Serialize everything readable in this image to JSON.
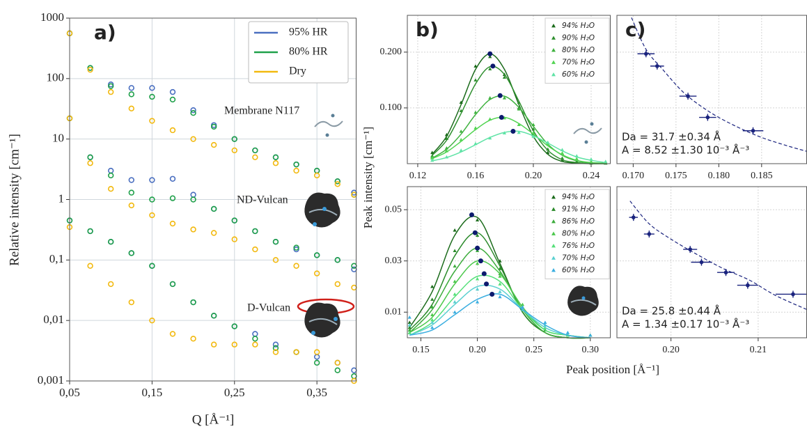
{
  "chart_data": [
    {
      "type": "scatter",
      "panel": "a)",
      "xlabel": "Q [Å⁻¹]",
      "ylabel": "Relative intensity [cm⁻¹]",
      "xlim": [
        0.05,
        0.398
      ],
      "xticks": [
        {
          "value": 0.05,
          "label": "0,05"
        },
        {
          "value": 0.15,
          "label": "0,15"
        },
        {
          "value": 0.25,
          "label": "0,25"
        },
        {
          "value": 0.35,
          "label": "0,35"
        }
      ],
      "ylim": [
        0.001,
        1000
      ],
      "ylog": true,
      "yticks": [
        {
          "value": 0.001,
          "label": "0,001"
        },
        {
          "value": 0.01,
          "label": "0,01"
        },
        {
          "value": 0.1,
          "label": "0,1"
        },
        1,
        10,
        100,
        1000
      ],
      "grid": true,
      "legend": "upper right",
      "series": [
        {
          "name": "95% HR",
          "color": "#4a6fc0",
          "marker": "circle"
        },
        {
          "name": "80% HR",
          "color": "#1fa04a",
          "marker": "circle"
        },
        {
          "name": "Dry",
          "color": "#f2b90f",
          "marker": "circle"
        }
      ],
      "x": [
        0.05,
        0.075,
        0.1,
        0.125,
        0.15,
        0.175,
        0.2,
        0.225,
        0.25,
        0.275,
        0.3,
        0.325,
        0.35,
        0.375,
        0.395
      ],
      "samples": [
        {
          "label": "Membrane N117",
          "values": [
            [
              560,
              150,
              80,
              70,
              70,
              60,
              30,
              17,
              10,
              6.5,
              5,
              3.8,
              3,
              2,
              1.3
            ],
            [
              560,
              150,
              75,
              55,
              50,
              45,
              27,
              16,
              10,
              6.5,
              5,
              3.8,
              3,
              2,
              1.2
            ],
            [
              560,
              140,
              60,
              32,
              20,
              14,
              10,
              8,
              6.5,
              5,
              4,
              3,
              2.5,
              1.8,
              1.2
            ]
          ]
        },
        {
          "label": "ND-Vulcan",
          "values": [
            [
              22,
              5,
              3,
              2.1,
              2.1,
              2.2,
              1.2,
              0.7,
              0.45,
              0.3,
              0.2,
              0.15,
              0.12,
              0.1,
              0.07
            ],
            [
              22,
              5,
              2.5,
              1.3,
              1,
              1.05,
              1,
              0.7,
              0.45,
              0.3,
              0.2,
              0.16,
              0.12,
              0.1,
              0.08
            ],
            [
              22,
              4,
              1.5,
              0.8,
              0.55,
              0.4,
              0.32,
              0.28,
              0.22,
              0.15,
              0.1,
              0.08,
              0.06,
              0.04,
              0.035
            ]
          ]
        },
        {
          "label": "D-Vulcan",
          "values": [
            [
              0.45,
              0.3,
              0.2,
              0.13,
              0.08,
              0.04,
              0.02,
              0.012,
              0.008,
              0.006,
              0.004,
              0.003,
              0.0025,
              0.002,
              0.0015
            ],
            [
              0.45,
              0.3,
              0.2,
              0.13,
              0.08,
              0.04,
              0.02,
              0.012,
              0.008,
              0.005,
              0.0035,
              0.003,
              0.002,
              0.0015,
              0.0012
            ],
            [
              0.35,
              0.08,
              0.04,
              0.02,
              0.01,
              0.006,
              0.005,
              0.004,
              0.004,
              0.004,
              0.003,
              0.003,
              0.003,
              0.002,
              0.001
            ]
          ]
        }
      ]
    },
    {
      "type": "line",
      "panel": "b)",
      "ylabel": "Peak intensity [cm⁻¹]",
      "xlim": [
        0.1128,
        0.2535
      ],
      "xticks": [
        0.12,
        0.16,
        {
          "value": 0.2,
          "label": "0.20"
        },
        0.24
      ],
      "ylim": [
        0,
        0.266
      ],
      "yticks": [
        {
          "value": 0.1,
          "label": "0.100"
        },
        {
          "value": 0.2,
          "label": "0.200"
        }
      ],
      "grid": true,
      "legend": "upper right",
      "peak_color": "#0d1a6e",
      "x": [
        0.13,
        0.14,
        0.15,
        0.16,
        0.17,
        0.18,
        0.19,
        0.2,
        0.21,
        0.22,
        0.23,
        0.24,
        0.25
      ],
      "series": [
        {
          "name": "94% H₂O",
          "color": "#1b6b1b",
          "values": [
            0.02,
            0.052,
            0.11,
            0.175,
            0.192,
            0.16,
            0.1,
            0.052,
            0.02,
            0.006,
            0.002,
            0.001,
            0.001
          ],
          "fit": [
            0.017,
            0.049,
            0.106,
            0.169,
            0.197,
            0.169,
            0.106,
            0.049,
            0.017,
            0.004,
            0.001,
            0,
            0
          ],
          "peak": [
            0.17,
            0.197
          ]
        },
        {
          "name": "90% H₂O",
          "color": "#2f8f2f",
          "values": [
            0.014,
            0.045,
            0.095,
            0.15,
            0.17,
            0.155,
            0.11,
            0.062,
            0.026,
            0.01,
            0.004,
            0.002,
            0.001
          ],
          "fit": [
            0.015,
            0.042,
            0.09,
            0.143,
            0.174,
            0.16,
            0.112,
            0.059,
            0.024,
            0.007,
            0.002,
            0,
            0
          ],
          "peak": [
            0.172,
            0.175
          ]
        },
        {
          "name": "80% H₂O",
          "color": "#3fb23f",
          "values": [
            0.012,
            0.028,
            0.058,
            0.092,
            0.118,
            0.118,
            0.098,
            0.07,
            0.038,
            0.018,
            0.008,
            0.003,
            0.002
          ],
          "fit": [
            0.01,
            0.026,
            0.053,
            0.088,
            0.115,
            0.121,
            0.101,
            0.067,
            0.035,
            0.015,
            0.005,
            0.001,
            0
          ],
          "peak": [
            0.177,
            0.122
          ]
        },
        {
          "name": "70% H₂O",
          "color": "#52d452",
          "values": [
            0.01,
            0.023,
            0.043,
            0.064,
            0.08,
            0.082,
            0.07,
            0.055,
            0.035,
            0.019,
            0.009,
            0.004,
            0.002
          ],
          "fit": [
            0.009,
            0.021,
            0.04,
            0.061,
            0.078,
            0.083,
            0.072,
            0.053,
            0.032,
            0.016,
            0.006,
            0.002,
            0.001
          ],
          "peak": [
            0.178,
            0.083
          ]
        },
        {
          "name": "60% H₂O",
          "color": "#5fe3a6",
          "values": [
            0.006,
            0.012,
            0.024,
            0.036,
            0.046,
            0.055,
            0.056,
            0.049,
            0.038,
            0.025,
            0.014,
            0.008,
            0.004
          ],
          "fit": [
            0.005,
            0.011,
            0.021,
            0.034,
            0.047,
            0.056,
            0.058,
            0.05,
            0.037,
            0.023,
            0.012,
            0.006,
            0.002
          ],
          "peak": [
            0.186,
            0.058
          ]
        }
      ]
    },
    {
      "type": "line",
      "xlabel": "Peak position [Å⁻¹]",
      "xlim": [
        0.138,
        0.318
      ],
      "xticks": [
        0.15,
        {
          "value": 0.2,
          "label": "0.20"
        },
        0.25,
        {
          "value": 0.3,
          "label": "0.30"
        }
      ],
      "ylim": [
        0,
        0.059
      ],
      "yticks": [
        0.01,
        0.03,
        0.05
      ],
      "grid": true,
      "legend": "upper right",
      "peak_color": "#0d1a6e",
      "x": [
        0.14,
        0.16,
        0.18,
        0.2,
        0.22,
        0.24,
        0.26,
        0.28,
        0.3
      ],
      "series": [
        {
          "name": "94% H₂O",
          "color": "#1b6b1b",
          "values": [
            0.006,
            0.02,
            0.042,
            0.046,
            0.03,
            0.011,
            0.003,
            0.001,
            0.001
          ],
          "fit": [
            0.004,
            0.018,
            0.04,
            0.047,
            0.029,
            0.01,
            0.002,
            0,
            0
          ],
          "peak": [
            0.195,
            0.048
          ]
        },
        {
          "name": "91% H₂O",
          "color": "#2a8a2a",
          "values": [
            0.004,
            0.015,
            0.034,
            0.04,
            0.027,
            0.011,
            0.003,
            0.001,
            0.001
          ],
          "fit": [
            0.003,
            0.013,
            0.032,
            0.041,
            0.028,
            0.01,
            0.002,
            0,
            0
          ],
          "peak": [
            0.198,
            0.041
          ]
        },
        {
          "name": "86% H₂O",
          "color": "#3cac3c",
          "values": [
            0.003,
            0.012,
            0.028,
            0.034,
            0.025,
            0.012,
            0.003,
            0.001,
            0.001
          ],
          "fit": [
            0.002,
            0.011,
            0.026,
            0.035,
            0.026,
            0.011,
            0.002,
            0,
            0
          ],
          "peak": [
            0.2,
            0.035
          ]
        },
        {
          "name": "80% H₂O",
          "color": "#4cc84c",
          "values": [
            0.002,
            0.009,
            0.022,
            0.029,
            0.024,
            0.013,
            0.004,
            0.001,
            0.001
          ],
          "fit": [
            0.002,
            0.008,
            0.021,
            0.03,
            0.025,
            0.012,
            0.003,
            0.001,
            0
          ],
          "peak": [
            0.203,
            0.03
          ]
        },
        {
          "name": "76% H₂O",
          "color": "#55e07a",
          "values": [
            0.002,
            0.007,
            0.017,
            0.023,
            0.021,
            0.012,
            0.004,
            0.001,
            0.001
          ],
          "fit": [
            0.001,
            0.006,
            0.016,
            0.024,
            0.022,
            0.011,
            0.003,
            0.001,
            0
          ],
          "peak": [
            0.206,
            0.025
          ]
        },
        {
          "name": "70% H₂O",
          "color": "#5ad0d0",
          "values": [
            0.005,
            0.006,
            0.014,
            0.019,
            0.018,
            0.011,
            0.005,
            0.002,
            0.001
          ],
          "fit": [
            0.001,
            0.005,
            0.013,
            0.02,
            0.019,
            0.011,
            0.004,
            0.001,
            0
          ],
          "peak": [
            0.208,
            0.021
          ]
        },
        {
          "name": "60% H₂O",
          "color": "#3aaee0",
          "values": [
            0.008,
            0.004,
            0.01,
            0.014,
            0.016,
            0.012,
            0.006,
            0.002,
            0.001
          ],
          "fit": [
            0.001,
            0.003,
            0.009,
            0.015,
            0.017,
            0.011,
            0.005,
            0.001,
            0
          ],
          "peak": [
            0.213,
            0.017
          ]
        }
      ]
    },
    {
      "type": "errorbar",
      "panel": "c)",
      "xlim": [
        0.1681,
        0.1903
      ],
      "xticks": [
        {
          "value": 0.17,
          "label": "0.170"
        },
        0.175,
        {
          "value": 0.18,
          "label": "0.180"
        },
        0.185
      ],
      "ylim": [
        0,
        0.266
      ],
      "yticks": [
        0.1,
        0.2
      ],
      "grid": true,
      "color": "#1a237e",
      "x": [
        0.1715,
        0.1728,
        0.1764,
        0.1787,
        0.184
      ],
      "values": [
        0.197,
        0.175,
        0.121,
        0.083,
        0.059
      ],
      "xerr": [
        0.001,
        0.0008,
        0.001,
        0.001,
        0.0012
      ],
      "fit": {
        "x": [
          0.1698,
          0.1715,
          0.1735,
          0.176,
          0.179,
          0.182,
          0.185,
          0.188,
          0.1903
        ],
        "values": [
          0.262,
          0.205,
          0.168,
          0.126,
          0.092,
          0.067,
          0.047,
          0.032,
          0.022
        ]
      },
      "annotations": [
        "Da = 31.7 ±0.34 Å",
        "A  = 8.52 ±1.30 10⁻³ Å⁻³"
      ]
    },
    {
      "type": "errorbar",
      "xlim": [
        0.1938,
        0.2156
      ],
      "xticks": [
        {
          "value": 0.2,
          "label": "0.20"
        },
        0.21
      ],
      "ylim": [
        0,
        0.059
      ],
      "yticks": [
        0.01,
        0.03,
        0.05
      ],
      "grid": true,
      "color": "#1a237e",
      "x": [
        0.1957,
        0.1975,
        0.2022,
        0.2035,
        0.2063,
        0.2088,
        0.214
      ],
      "values": [
        0.047,
        0.0405,
        0.0345,
        0.0295,
        0.0255,
        0.0205,
        0.017
      ],
      "xerr": [
        0.0005,
        0.0006,
        0.0008,
        0.0012,
        0.001,
        0.0012,
        0.002
      ],
      "fit": {
        "x": [
          0.1953,
          0.1975,
          0.2,
          0.203,
          0.206,
          0.209,
          0.212,
          0.2156
        ],
        "values": [
          0.0534,
          0.0445,
          0.0385,
          0.0325,
          0.027,
          0.0225,
          0.0165,
          0.011
        ]
      },
      "annotations": [
        "Da = 25.8 ±0.44 Å",
        "A  = 1.34 ±0.17 10⁻³ Å⁻³"
      ]
    }
  ]
}
